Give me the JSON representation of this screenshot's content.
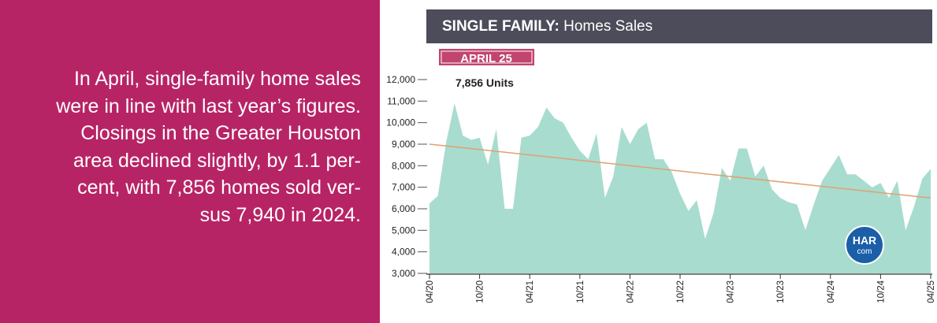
{
  "summary": {
    "lines": [
      "In April, single-family home sales",
      "were in line with last year’s figures.",
      "Closings in the Greater Houston",
      "area declined slightly, by 1.1 per-",
      "cent, with 7,856 homes sold ver-",
      "sus 7,940 in 2024."
    ]
  },
  "header": {
    "bold": "SINGLE FAMILY:",
    "rest": " Homes Sales",
    "bg": "#4d4c5a"
  },
  "badge": {
    "label": "APRIL 25",
    "value_text": "7,856 Units",
    "bg": "#c2456f"
  },
  "logo": {
    "top": "HAR",
    "bottom": "com",
    "color": "#1a5fa8"
  },
  "colors": {
    "panel": "#b72465",
    "area": "#a8dccf",
    "trend": "#e0a070"
  },
  "chart_data": {
    "type": "area",
    "y_ticks": [
      "12,000",
      "11,000",
      "10,000",
      "9,000",
      "8,000",
      "7,000",
      "6,000",
      "5,000",
      "4,000",
      "3,000"
    ],
    "x_ticks": [
      "04/20",
      "10/20",
      "04/21",
      "10/21",
      "04/22",
      "10/22",
      "04/23",
      "10/23",
      "04/24",
      "10/24",
      "04/25"
    ],
    "ylim": [
      3000,
      12000
    ],
    "x": [
      "2020-04",
      "2020-05",
      "2020-06",
      "2020-07",
      "2020-08",
      "2020-09",
      "2020-10",
      "2020-11",
      "2020-12",
      "2021-01",
      "2021-02",
      "2021-03",
      "2021-04",
      "2021-05",
      "2021-06",
      "2021-07",
      "2021-08",
      "2021-09",
      "2021-10",
      "2021-11",
      "2021-12",
      "2022-01",
      "2022-02",
      "2022-03",
      "2022-04",
      "2022-05",
      "2022-06",
      "2022-07",
      "2022-08",
      "2022-09",
      "2022-10",
      "2022-11",
      "2022-12",
      "2023-01",
      "2023-02",
      "2023-03",
      "2023-04",
      "2023-05",
      "2023-06",
      "2023-07",
      "2023-08",
      "2023-09",
      "2023-10",
      "2023-11",
      "2023-12",
      "2024-01",
      "2024-02",
      "2024-03",
      "2024-04",
      "2024-05",
      "2024-06",
      "2024-07",
      "2024-08",
      "2024-09",
      "2024-10",
      "2024-11",
      "2024-12",
      "2025-01",
      "2025-02",
      "2025-03",
      "2025-04"
    ],
    "values": [
      6250,
      6600,
      9100,
      10900,
      9400,
      9200,
      9300,
      8050,
      9700,
      6000,
      6000,
      9300,
      9400,
      9800,
      10700,
      10200,
      10000,
      9300,
      8700,
      8300,
      9500,
      6500,
      7500,
      9800,
      9000,
      9700,
      10000,
      8300,
      8300,
      7700,
      6700,
      5900,
      6400,
      4600,
      5800,
      7900,
      7300,
      8800,
      8800,
      7500,
      8000,
      6900,
      6500,
      6300,
      6200,
      5000,
      6200,
      7300,
      7900,
      8500,
      7600,
      7600,
      7300,
      7000,
      7200,
      6500,
      7300,
      5000,
      6100,
      7400,
      7856
    ],
    "trend": [
      9000,
      6500
    ]
  }
}
